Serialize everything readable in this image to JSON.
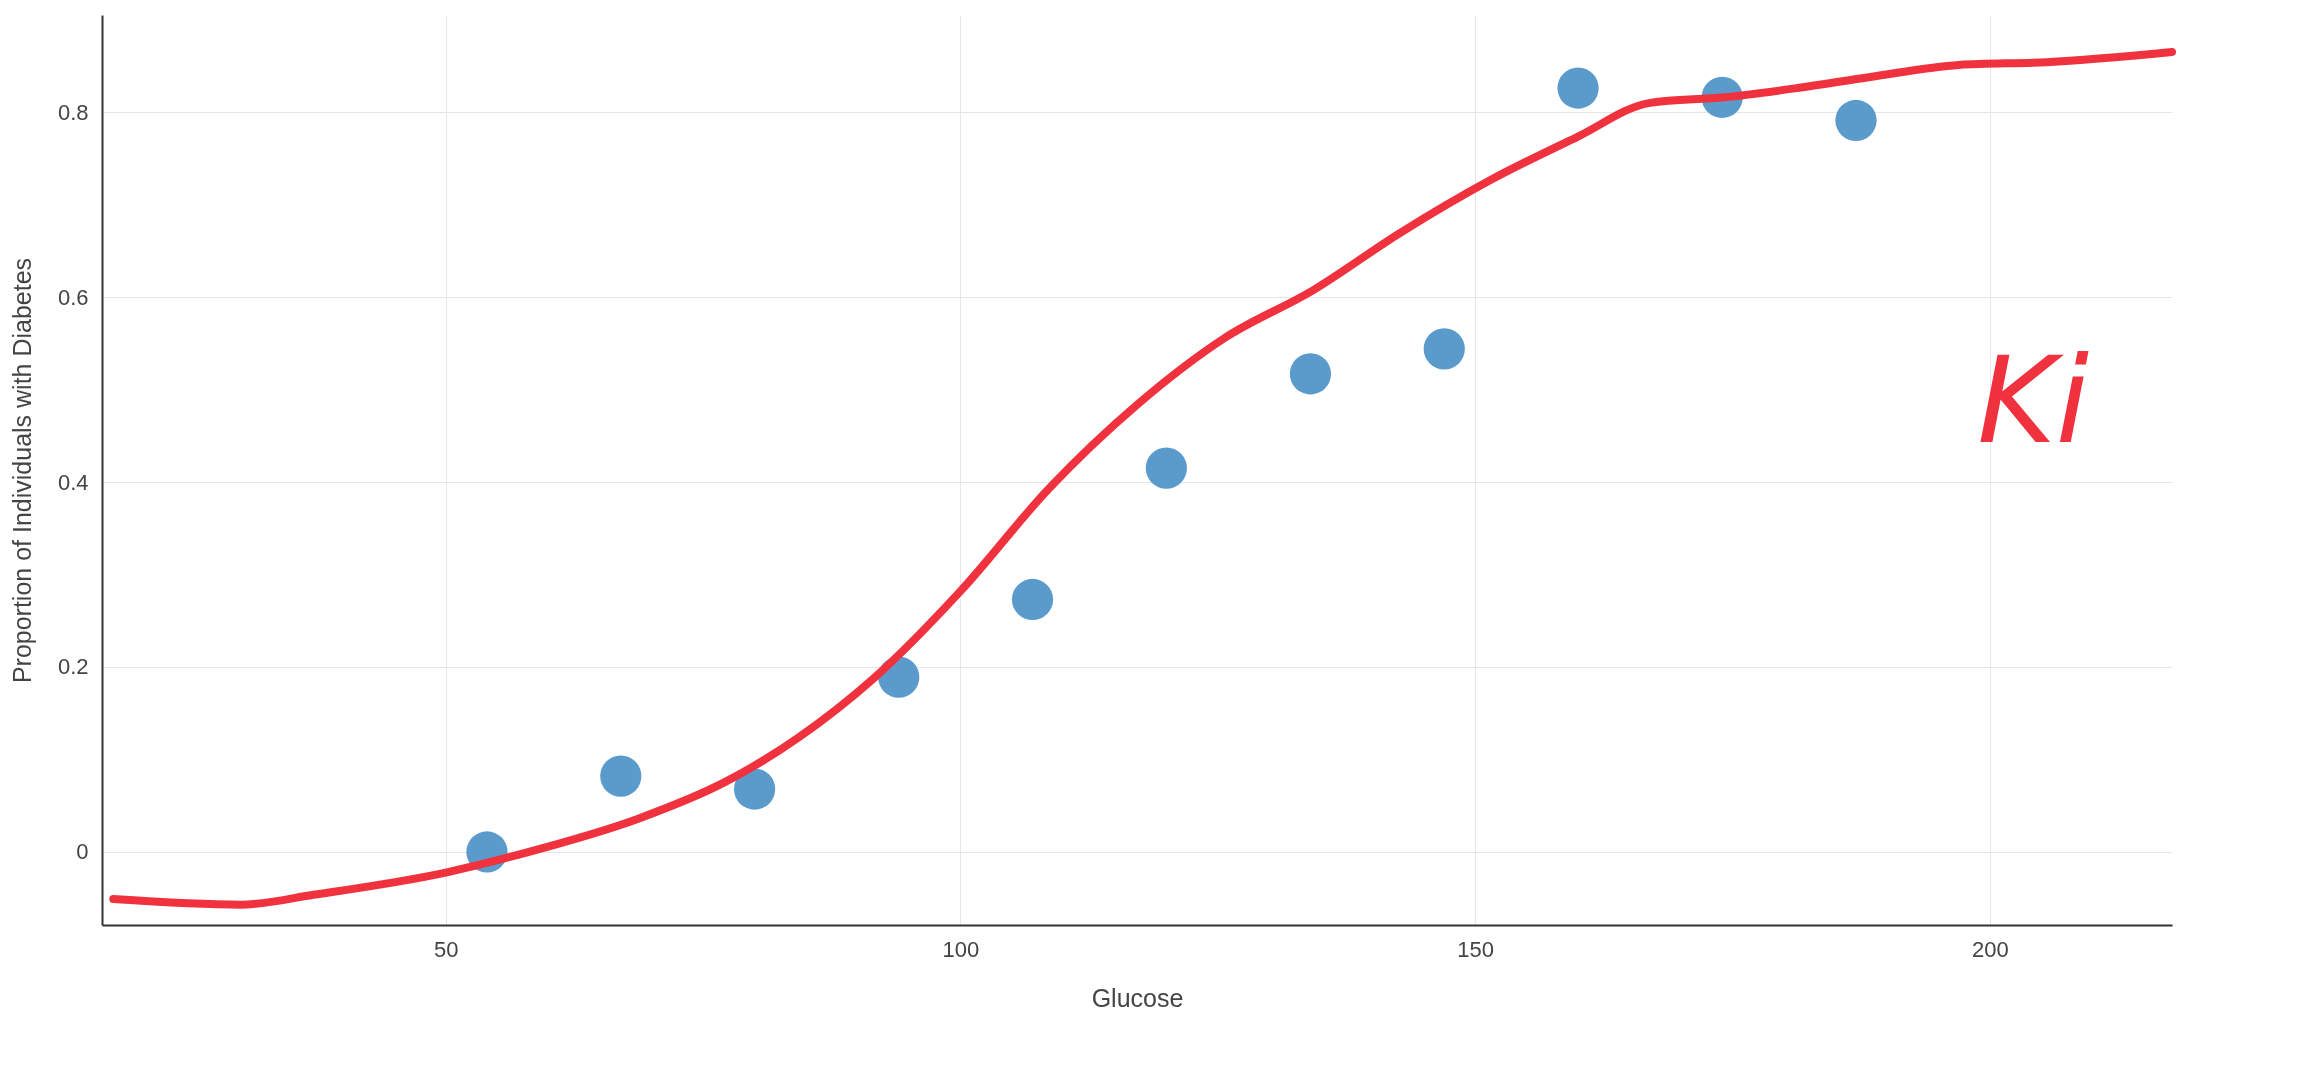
{
  "chart_data": {
    "type": "scatter",
    "xlabel": "Glucose",
    "ylabel": "Proportion of Individuals with Diabetes",
    "xlim": [
      16.6,
      217.7
    ],
    "ylim": [
      -0.079,
      0.905
    ],
    "xticks": [
      50,
      100,
      150,
      200
    ],
    "yticks": [
      0,
      0.2,
      0.4,
      0.6,
      0.8
    ],
    "grid": true,
    "annotations": [
      "Ki"
    ],
    "series": [
      {
        "marker": "circle",
        "color": "#5b9bcb",
        "x": [
          54,
          67,
          80,
          94,
          107,
          120,
          134,
          147,
          160,
          174,
          187
        ],
        "values": [
          0,
          0.082,
          0.068,
          0.189,
          0.273,
          0.415,
          0.517,
          0.544,
          0.826,
          0.816,
          0.791
        ]
      },
      {
        "type": "line",
        "color": "#f0323f",
        "x": [
          17.7,
          30.1,
          37.3,
          50.1,
          58.7,
          68.7,
          77.2,
          84.3,
          91.5,
          100,
          108.6,
          117.1,
          125.7,
          134.2,
          142.8,
          151.4,
          159.9,
          167,
          174.2,
          181.3,
          188.4,
          197,
          205.5,
          217.7
        ],
        "values": [
          -0.051,
          -0.057,
          -0.046,
          -0.022,
          0.002,
          0.036,
          0.076,
          0.124,
          0.187,
          0.282,
          0.393,
          0.483,
          0.556,
          0.607,
          0.67,
          0.726,
          0.773,
          0.81,
          0.816,
          0.826,
          0.838,
          0.851,
          0.854,
          0.865
        ]
      }
    ]
  }
}
